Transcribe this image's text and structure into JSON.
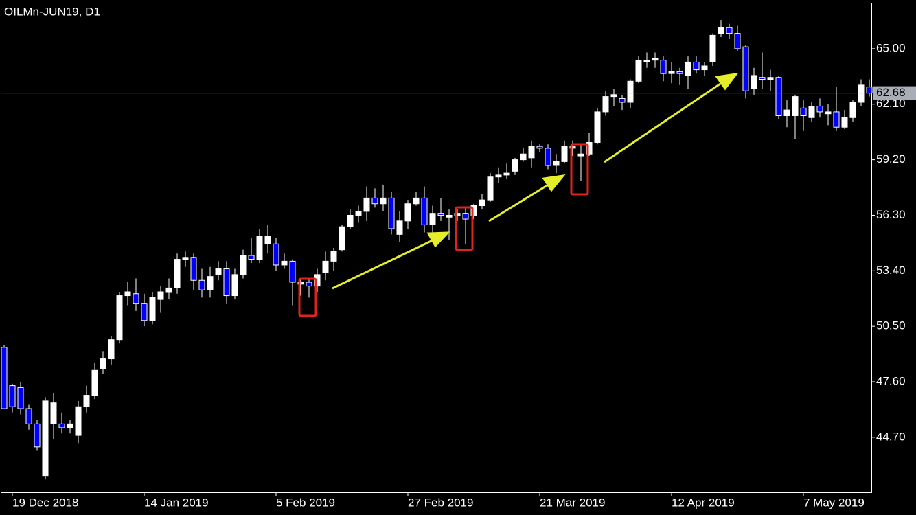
{
  "chart_data": {
    "type": "candlestick",
    "title": "OILMn-JUN19, D1",
    "categories": [
      null,
      "19 Dec 2018",
      null,
      null,
      null,
      null,
      null,
      null,
      null,
      null,
      null,
      null,
      null,
      null,
      null,
      null,
      null,
      "14 Jan 2019",
      null,
      null,
      null,
      null,
      null,
      null,
      null,
      null,
      null,
      null,
      null,
      null,
      null,
      null,
      null,
      "5 Feb 2019",
      null,
      null,
      null,
      null,
      null,
      null,
      null,
      null,
      null,
      null,
      null,
      null,
      null,
      null,
      null,
      "27 Feb 2019",
      null,
      null,
      null,
      null,
      null,
      null,
      null,
      null,
      null,
      null,
      null,
      null,
      null,
      null,
      null,
      "21 Mar 2019",
      null,
      null,
      null,
      null,
      null,
      null,
      null,
      null,
      null,
      null,
      null,
      null,
      null,
      null,
      null,
      "12 Apr 2019",
      null,
      null,
      null,
      null,
      null,
      null,
      null,
      null,
      null,
      null,
      null,
      null,
      null,
      null,
      null,
      "7 May 2019",
      null,
      null,
      null,
      null,
      null,
      null,
      null,
      null
    ],
    "open": [
      49.4,
      47.4,
      47.3,
      46.2,
      45.4,
      42.7,
      45.4,
      45.4,
      45.2,
      44.8,
      46.3,
      46.9,
      48.3,
      48.8,
      49.8,
      52.1,
      52.2,
      51.7,
      50.8,
      51.9,
      52.3,
      52.5,
      54.0,
      54.1,
      52.9,
      52.4,
      53.2,
      53.5,
      52.1,
      53.2,
      54.2,
      54.0,
      54.8,
      54.8,
      53.7,
      53.9,
      52.7,
      52.8,
      52.6,
      53.3,
      53.9,
      54.5,
      55.7,
      56.3,
      56.5,
      57.2,
      56.9,
      57.2,
      55.3,
      56.0,
      56.9,
      57.2,
      55.8,
      56.4,
      56.2,
      56.3,
      56.4,
      56.3,
      56.8,
      57.1,
      58.3,
      58.4,
      58.6,
      59.2,
      59.3,
      59.9,
      59.8,
      58.9,
      59.1,
      59.8,
      59.4,
      59.5,
      60.1,
      61.7,
      62.5,
      62.4,
      62.2,
      63.3,
      64.3,
      64.4,
      64.4,
      63.7,
      63.8,
      63.6,
      64.3,
      63.9,
      64.3,
      65.8,
      66.1,
      65.8,
      65.1,
      62.9,
      63.5,
      63.4,
      63.5,
      61.5,
      61.5,
      61.9,
      61.4,
      62.0,
      61.6,
      61.7,
      60.9,
      61.4,
      62.2,
      63.0
    ],
    "high": [
      49.5,
      47.5,
      47.6,
      46.4,
      45.6,
      46.8,
      47.0,
      46.0,
      45.6,
      46.6,
      47.4,
      48.6,
      49.2,
      50.0,
      52.3,
      52.8,
      53.0,
      52.2,
      52.3,
      52.6,
      53.0,
      54.3,
      54.4,
      54.3,
      53.5,
      53.6,
      53.9,
      53.9,
      53.5,
      54.5,
      55.1,
      55.6,
      55.8,
      55.1,
      54.3,
      54.0,
      53.0,
      53.0,
      53.5,
      54.4,
      54.6,
      55.8,
      56.6,
      56.8,
      57.8,
      57.7,
      57.9,
      57.5,
      56.5,
      57.1,
      57.5,
      57.8,
      56.8,
      57.2,
      56.6,
      56.6,
      56.7,
      56.9,
      57.4,
      58.5,
      58.8,
      59.0,
      59.3,
      59.8,
      60.2,
      60.0,
      60.0,
      59.5,
      60.2,
      60.2,
      60.0,
      60.6,
      61.9,
      62.8,
      62.9,
      62.6,
      63.4,
      64.6,
      64.8,
      64.8,
      64.6,
      64.3,
      64.0,
      64.6,
      64.6,
      64.3,
      65.8,
      66.5,
      66.3,
      66.2,
      65.2,
      64.0,
      64.8,
      63.9,
      63.6,
      62.3,
      62.6,
      62.3,
      62.2,
      62.4,
      62.1,
      63.0,
      61.8,
      62.3,
      63.4,
      63.4
    ],
    "low": [
      46.2,
      46.0,
      45.9,
      45.1,
      44.0,
      42.5,
      44.6,
      44.9,
      44.9,
      44.4,
      46.0,
      46.7,
      48.0,
      48.5,
      49.6,
      51.6,
      51.3,
      50.5,
      50.6,
      51.2,
      51.9,
      52.2,
      53.6,
      52.4,
      52.0,
      52.0,
      52.9,
      51.7,
      51.9,
      53.0,
      53.8,
      53.8,
      54.3,
      53.4,
      53.5,
      51.6,
      52.1,
      52.0,
      52.3,
      52.9,
      53.4,
      54.4,
      55.6,
      55.9,
      56.0,
      56.7,
      56.5,
      55.3,
      54.9,
      55.6,
      56.8,
      55.4,
      55.4,
      56.0,
      55.0,
      56.0,
      54.8,
      56.1,
      56.6,
      57.0,
      58.0,
      58.2,
      58.4,
      59.1,
      58.8,
      59.6,
      58.7,
      58.5,
      59.0,
      59.4,
      58.1,
      59.4,
      60.0,
      61.5,
      62.0,
      61.8,
      61.9,
      63.2,
      64.0,
      64.0,
      63.3,
      63.2,
      63.1,
      62.9,
      63.7,
      63.6,
      64.1,
      65.6,
      65.5,
      64.9,
      62.4,
      62.6,
      62.9,
      62.8,
      61.3,
      60.9,
      60.3,
      60.7,
      61.2,
      61.4,
      61.0,
      60.7,
      60.8,
      61.2,
      62.0,
      62.5
    ],
    "close": [
      46.2,
      46.3,
      46.2,
      45.4,
      44.2,
      46.6,
      46.5,
      45.2,
      45.4,
      46.3,
      46.9,
      48.2,
      48.8,
      49.8,
      52.1,
      52.3,
      51.7,
      50.8,
      52.0,
      52.3,
      52.5,
      54.0,
      54.1,
      52.9,
      52.4,
      53.1,
      53.5,
      52.1,
      53.2,
      54.2,
      54.0,
      55.2,
      55.2,
      53.7,
      53.9,
      52.8,
      52.8,
      52.6,
      53.2,
      53.9,
      54.4,
      55.7,
      56.3,
      56.5,
      57.2,
      56.9,
      57.2,
      55.6,
      56.0,
      56.9,
      57.2,
      55.8,
      56.4,
      56.3,
      56.3,
      56.4,
      56.1,
      56.8,
      57.1,
      58.3,
      58.4,
      58.5,
      59.2,
      59.5,
      59.9,
      59.8,
      58.9,
      59.1,
      59.9,
      59.9,
      59.5,
      60.1,
      61.7,
      62.5,
      62.6,
      62.2,
      63.3,
      64.4,
      64.4,
      64.5,
      63.7,
      63.8,
      63.7,
      64.3,
      63.9,
      64.1,
      65.7,
      66.1,
      65.8,
      65.0,
      62.8,
      63.6,
      63.4,
      63.5,
      61.5,
      61.8,
      62.5,
      61.5,
      62.0,
      61.7,
      61.7,
      60.9,
      61.4,
      62.2,
      63.1,
      62.68
    ],
    "up_color": "#ffffff",
    "down_color": "#0000ff",
    "last_price": 62.68,
    "ylim": [
      41.79,
      67.4
    ],
    "yticks": [
      {
        "value": 44.7,
        "label": "44.70"
      },
      {
        "value": 47.6,
        "label": "47.60"
      },
      {
        "value": 50.5,
        "label": "50.50"
      },
      {
        "value": 53.4,
        "label": "53.40"
      },
      {
        "value": 56.3,
        "label": "56.30"
      },
      {
        "value": 59.2,
        "label": "59.20"
      },
      {
        "value": 62.1,
        "label": "62.10"
      },
      {
        "value": 65.0,
        "label": "65.00"
      }
    ],
    "grid": false
  }
}
